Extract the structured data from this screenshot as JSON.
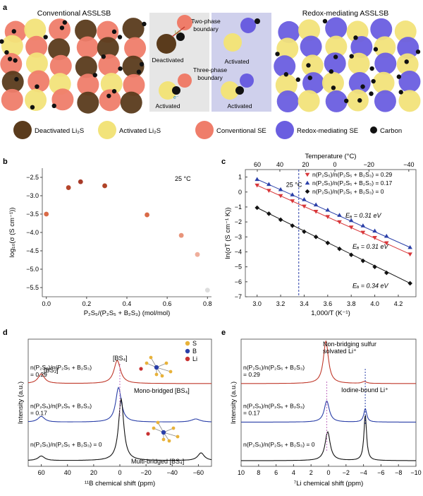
{
  "panel_a": {
    "letter": "a",
    "left_title": "Conventional ASSLSB",
    "right_title": "Redox-mediating ASSLSB",
    "center": {
      "two_phase": "Two-phase",
      "boundary1": "boundary",
      "three_phase": "Three-phase",
      "boundary2": "boundary",
      "deactivated": "Deactivated",
      "activated_tr": "Activated",
      "activated_bl": "Activated",
      "activated_br": "Activated",
      "li_plus": "Li⁺",
      "e_minus": "e⁻"
    },
    "legend": [
      {
        "key": "deactivated",
        "label": "Deactivated Li₂S",
        "color": "#5a3b1c"
      },
      {
        "key": "activated",
        "label": "Activated Li₂S",
        "color": "#f2e37a"
      },
      {
        "key": "conventional",
        "label": "Conventional SE",
        "color": "#ef7d6a"
      },
      {
        "key": "redox",
        "label": "Redox-mediating SE",
        "color": "#6a5ee0"
      },
      {
        "key": "carbon",
        "label": "Carbon",
        "color": "#111111"
      }
    ]
  },
  "panel_b": {
    "letter": "b",
    "annotation": "25 °C",
    "xlabel": "P₂S₅/(P₂S₅ + B₂S₃) (mol/mol)",
    "ylabel": "log₁₀(σ (S cm⁻¹))"
  },
  "panel_c": {
    "letter": "c",
    "top_label": "Temperature (°C)",
    "xlabel": "1,000/T (K⁻¹)",
    "ylabel": "ln(σT (S cm⁻¹ K))",
    "marker_label": "25 °C",
    "legend": [
      "n(P₂S₅)/n(P₂S₅ + B₂S₃) = 0.29",
      "n(P₂S₅)/n(P₂S₅ + B₂S₃) = 0.17",
      "n(P₂S₅)/n(P₂S₅ + B₂S₃) = 0"
    ],
    "ea_labels": [
      "Eₐ = 0.31 eV",
      "Eₐ = 0.31 eV",
      "Eₐ = 0.34 eV"
    ]
  },
  "panel_d": {
    "letter": "d",
    "legend": [
      "S",
      "B",
      "Li"
    ],
    "legend_colors": [
      "#e8b23a",
      "#2a3fa8",
      "#c83232"
    ],
    "peak_bs3": "[BS₃]",
    "peak_bs4": "[BS₄]",
    "label_mono": "Mono-bridged [BS₄]",
    "label_multi": "Multi-bridged [BS₄]",
    "trace_labels": [
      [
        "n(P₂S₅)/n(P₂S₅ + B₂S₃)",
        "= 0.29"
      ],
      [
        "n(P₂S₅)/n(P₂S₅ + B₂S₃)",
        "= 0.17"
      ],
      [
        "n(P₂S₅)/n(P₂S₅ + B₂S₃) = 0",
        ""
      ]
    ],
    "xlabel": "¹¹B chemical shift (ppm)",
    "ylabel": "Intensity (a.u.)",
    "xticks": [
      "60",
      "40",
      "20",
      "0",
      "−20",
      "−40",
      "−60"
    ]
  },
  "panel_e": {
    "letter": "e",
    "label_nb1": "Non-bridging sulfur",
    "label_nb2": "solvated Li⁺",
    "label_iodine": "Iodine-bound Li⁺",
    "trace_labels": [
      [
        "n(P₂S₅)/n(P₂S₅ + B₂S₃)",
        "= 0.29"
      ],
      [
        "n(P₂S₅)/n(P₂S₅ + B₂S₃)",
        "= 0.17"
      ],
      [
        "n(P₂S₅)/n(P₂S₅ + B₂S₃) = 0",
        ""
      ]
    ],
    "xlabel": "⁷Li chemical shift (ppm)",
    "ylabel": "Intensity (a.u.)",
    "xticks": [
      "10",
      "8",
      "6",
      "4",
      "2",
      "0",
      "−2",
      "−4",
      "−6",
      "−8",
      "−10"
    ]
  },
  "chart_data": [
    {
      "type": "scatter",
      "panel": "b",
      "xlabel": "P₂S₅/(P₂S₅ + B₂S₃) (mol/mol)",
      "ylabel": "log₁₀(σ (S cm⁻¹))",
      "xlim": [
        -0.02,
        0.82
      ],
      "ylim": [
        -5.75,
        -2.25
      ],
      "xticks": [
        0,
        0.2,
        0.4,
        0.6,
        0.8
      ],
      "yticks": [
        -2.5,
        -3.0,
        -3.5,
        -4.0,
        -4.5,
        -5.0,
        -5.5
      ],
      "x": [
        0,
        0.11,
        0.17,
        0.29,
        0.5,
        0.67,
        0.75,
        0.8
      ],
      "y": [
        -3.5,
        -2.78,
        -2.62,
        -2.73,
        -3.52,
        -4.08,
        -4.6,
        -5.57
      ],
      "colors": [
        "#d96a47",
        "#b5452b",
        "#a73a28",
        "#b04327",
        "#d96a47",
        "#e8947a",
        "#efae9b",
        "#dddddd"
      ]
    },
    {
      "type": "scatter",
      "panel": "c",
      "xlabel": "1,000/T (K⁻¹)",
      "ylabel": "ln(σT (S cm⁻¹ K))",
      "xlim": [
        2.9,
        4.35
      ],
      "ylim": [
        -7,
        1.5
      ],
      "xticks": [
        3.0,
        3.2,
        3.4,
        3.6,
        3.8,
        4.0,
        4.2
      ],
      "yticks": [
        1,
        0,
        -1,
        -2,
        -3,
        -4,
        -5,
        -6,
        -7
      ],
      "top_ticks_c": [
        60,
        40,
        20,
        0,
        -20,
        -40
      ],
      "vline_x": 3.354,
      "series": [
        {
          "name": "n(P₂S₅)/n(P₂S₅ + B₂S₃) = 0.29",
          "marker": "tri-down",
          "color": "#d8373a",
          "x": [
            3.0,
            3.1,
            3.2,
            3.3,
            3.4,
            3.5,
            3.6,
            3.7,
            3.8,
            3.9,
            4.0,
            4.1,
            4.3
          ],
          "y": [
            0.45,
            0.1,
            -0.25,
            -0.6,
            -0.95,
            -1.3,
            -1.65,
            -2.0,
            -2.35,
            -2.7,
            -3.05,
            -3.4,
            -4.15
          ]
        },
        {
          "name": "n(P₂S₅)/n(P₂S₅ + B₂S₃) = 0.17",
          "marker": "tri-up",
          "color": "#2a3fa8",
          "x": [
            3.0,
            3.1,
            3.2,
            3.3,
            3.4,
            3.5,
            3.6,
            3.7,
            3.8,
            3.9,
            4.0,
            4.1,
            4.3
          ],
          "y": [
            0.85,
            0.52,
            0.17,
            -0.18,
            -0.5,
            -0.85,
            -1.2,
            -1.55,
            -1.9,
            -2.25,
            -2.6,
            -2.95,
            -3.7
          ]
        },
        {
          "name": "n(P₂S₅)/n(P₂S₅ + B₂S₃) = 0",
          "marker": "diamond",
          "color": "#111111",
          "x": [
            3.0,
            3.1,
            3.2,
            3.3,
            3.4,
            3.5,
            3.6,
            3.7,
            3.8,
            3.9,
            4.0,
            4.1,
            4.3
          ],
          "y": [
            -1.05,
            -1.45,
            -1.85,
            -2.25,
            -2.65,
            -3.0,
            -3.4,
            -3.8,
            -4.2,
            -4.6,
            -5.0,
            -5.4,
            -6.1
          ]
        }
      ]
    },
    {
      "type": "line",
      "panel": "d",
      "xlabel": "¹¹B chemical shift (ppm)",
      "ylabel": "Intensity (a.u.)",
      "xlim": [
        70,
        -70
      ],
      "series": [
        {
          "name": "n(P₂S₅)/n(P₂S₅ + B₂S₃) = 0.29",
          "color": "#c0392b",
          "offset": 2.0,
          "peaks": [
            [
              60,
              0.25,
              3
            ],
            [
              2,
              0.6,
              3
            ]
          ]
        },
        {
          "name": "n(P₂S₅)/n(P₂S₅ + B₂S₃) = 0.17",
          "color": "#2a3fa8",
          "offset": 1.0,
          "peaks": [
            [
              60,
              0.15,
              3
            ],
            [
              1,
              0.9,
              2.6
            ],
            [
              -58,
              0.08,
              4
            ]
          ]
        },
        {
          "name": "n(P₂S₅)/n(P₂S₅ + B₂S₃) = 0",
          "color": "#111111",
          "offset": 0,
          "peaks": [
            [
              60,
              0.12,
              3
            ],
            [
              -1,
              1.6,
              2.4
            ],
            [
              -62,
              0.2,
              3
            ]
          ]
        }
      ]
    },
    {
      "type": "line",
      "panel": "e",
      "xlabel": "⁷Li chemical shift (ppm)",
      "ylabel": "Intensity (a.u.)",
      "xlim": [
        10,
        -10
      ],
      "series": [
        {
          "name": "n(P₂S₅)/n(P₂S₅ + B₂S₃) = 0.29",
          "color": "#c0392b",
          "offset": 2.0,
          "peaks": [
            [
              0.3,
              1.1,
              0.35
            ],
            [
              -4.1,
              0.05,
              0.3
            ]
          ]
        },
        {
          "name": "n(P₂S₅)/n(P₂S₅ + B₂S₃) = 0.17",
          "color": "#2a3fa8",
          "offset": 1.0,
          "peaks": [
            [
              0.2,
              0.55,
              0.35
            ],
            [
              -4.2,
              0.35,
              0.2
            ]
          ]
        },
        {
          "name": "n(P₂S₅)/n(P₂S₅ + B₂S₃) = 0",
          "color": "#111111",
          "offset": 0,
          "peaks": [
            [
              0.1,
              0.75,
              0.35
            ],
            [
              -4.2,
              1.2,
              0.18
            ]
          ]
        }
      ]
    }
  ]
}
